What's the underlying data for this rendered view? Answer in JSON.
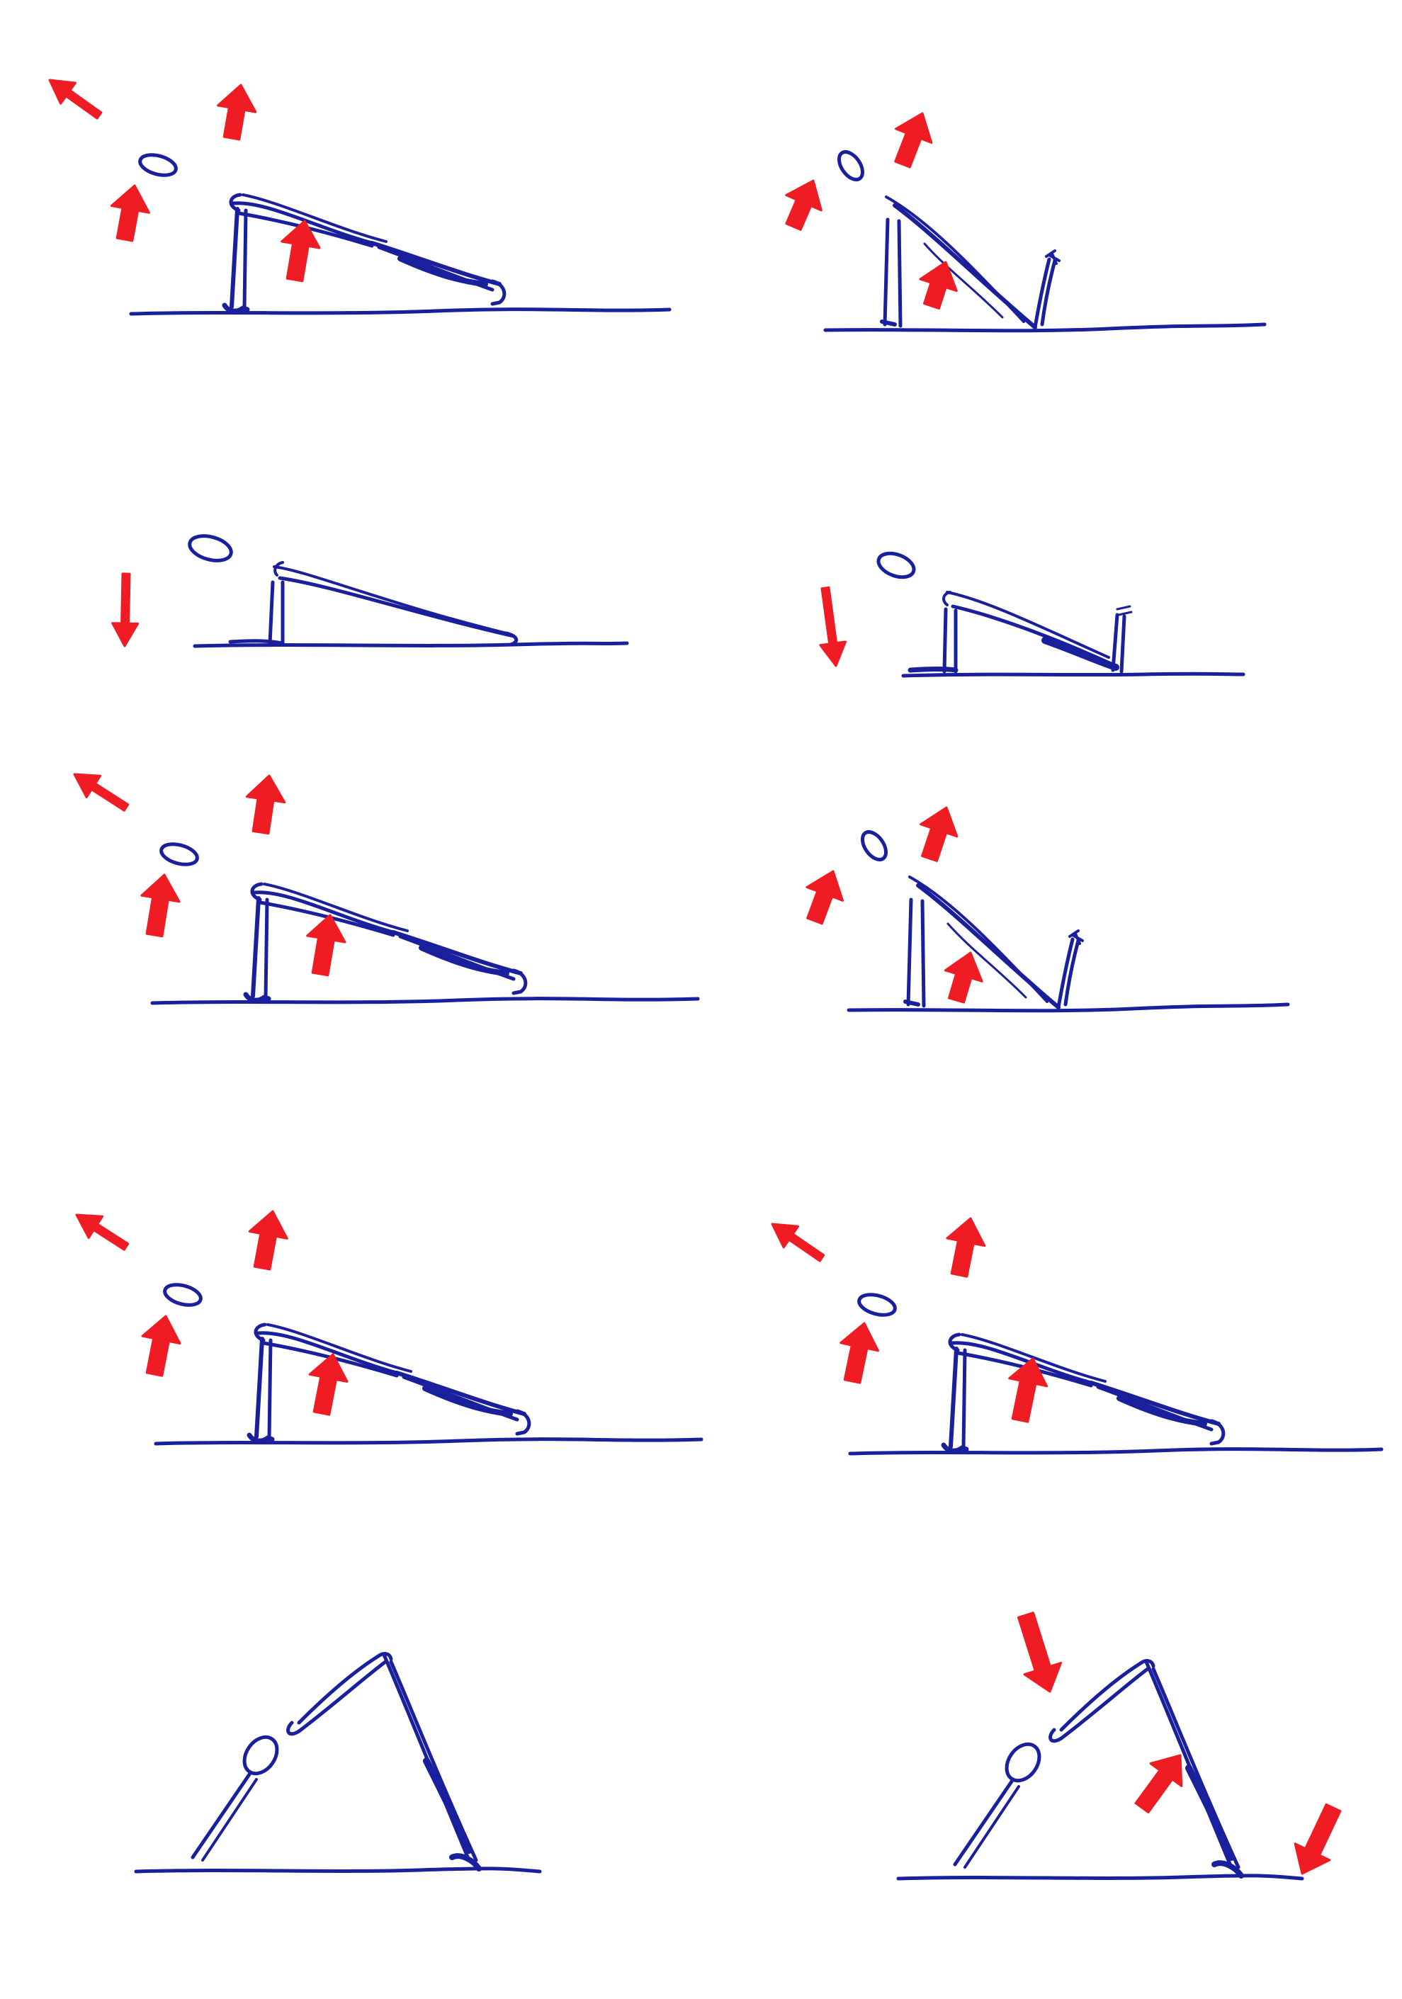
{
  "colors": {
    "background": "#ffffff",
    "figure_ink": "#1a1f9c",
    "arrow_ink": "#f01c24"
  },
  "panels": [
    {
      "id": "row1-left",
      "pose": "incline-plank-straight-legs",
      "arrows": [
        "up-left",
        "up",
        "up",
        "up"
      ]
    },
    {
      "id": "row1-right",
      "pose": "incline-plank-one-leg-raised",
      "arrows": [
        "up",
        "up",
        "up"
      ]
    },
    {
      "id": "row2-left",
      "pose": "low-plank-straight-legs",
      "arrows": [
        "down"
      ]
    },
    {
      "id": "row2-right",
      "pose": "low-plank-bent-knees",
      "arrows": [
        "down"
      ]
    },
    {
      "id": "row3-left",
      "pose": "incline-plank-straight-legs",
      "arrows": [
        "up-left",
        "up",
        "up",
        "up"
      ]
    },
    {
      "id": "row3-right",
      "pose": "incline-plank-one-leg-raised",
      "arrows": [
        "up",
        "up",
        "up"
      ]
    },
    {
      "id": "row4-left",
      "pose": "incline-plank-straight-legs",
      "arrows": [
        "up-left",
        "up",
        "up",
        "up"
      ]
    },
    {
      "id": "row4-right",
      "pose": "incline-plank-straight-legs",
      "arrows": [
        "up-left",
        "up",
        "up",
        "up"
      ]
    },
    {
      "id": "row5-left",
      "pose": "downward-dog",
      "arrows": []
    },
    {
      "id": "row5-right",
      "pose": "downward-dog",
      "arrows": [
        "down",
        "up",
        "down"
      ]
    }
  ]
}
